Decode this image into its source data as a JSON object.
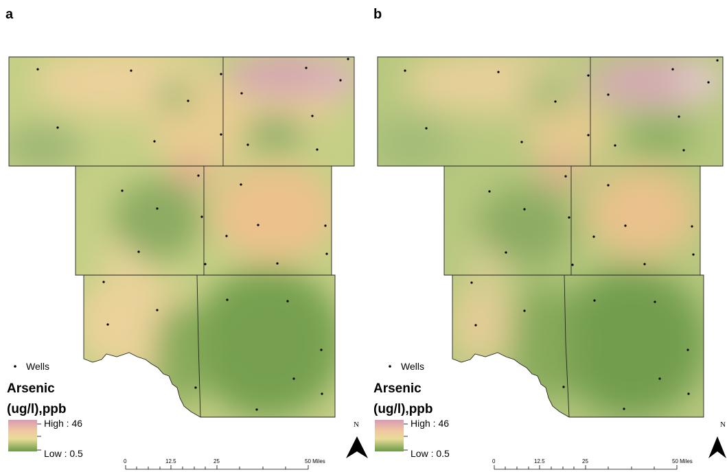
{
  "panels": [
    {
      "letter": "a",
      "legend": {
        "wells_label": "Wells",
        "title_line1": "Arsenic",
        "title_line2": "(ug/l),ppb",
        "high_label": "High : 46",
        "low_label": "Low : 0.5"
      },
      "scale": {
        "ticks": [
          "0",
          "12.5",
          "25",
          "50 Miles"
        ]
      },
      "north_label": "N"
    },
    {
      "letter": "b",
      "legend": {
        "wells_label": "Wells",
        "title_line1": "Arsenic",
        "title_line2": "(ug/l),ppb",
        "high_label": "High : 46",
        "low_label": "Low : 0.5"
      },
      "scale": {
        "ticks": [
          "0",
          "12.5",
          "25",
          "50 Miles"
        ]
      },
      "north_label": "N"
    }
  ],
  "colors": {
    "high": "#d4a3b0",
    "mid": "#eccb8f",
    "low": "#6f9a4e",
    "background": "#c9d38f"
  }
}
